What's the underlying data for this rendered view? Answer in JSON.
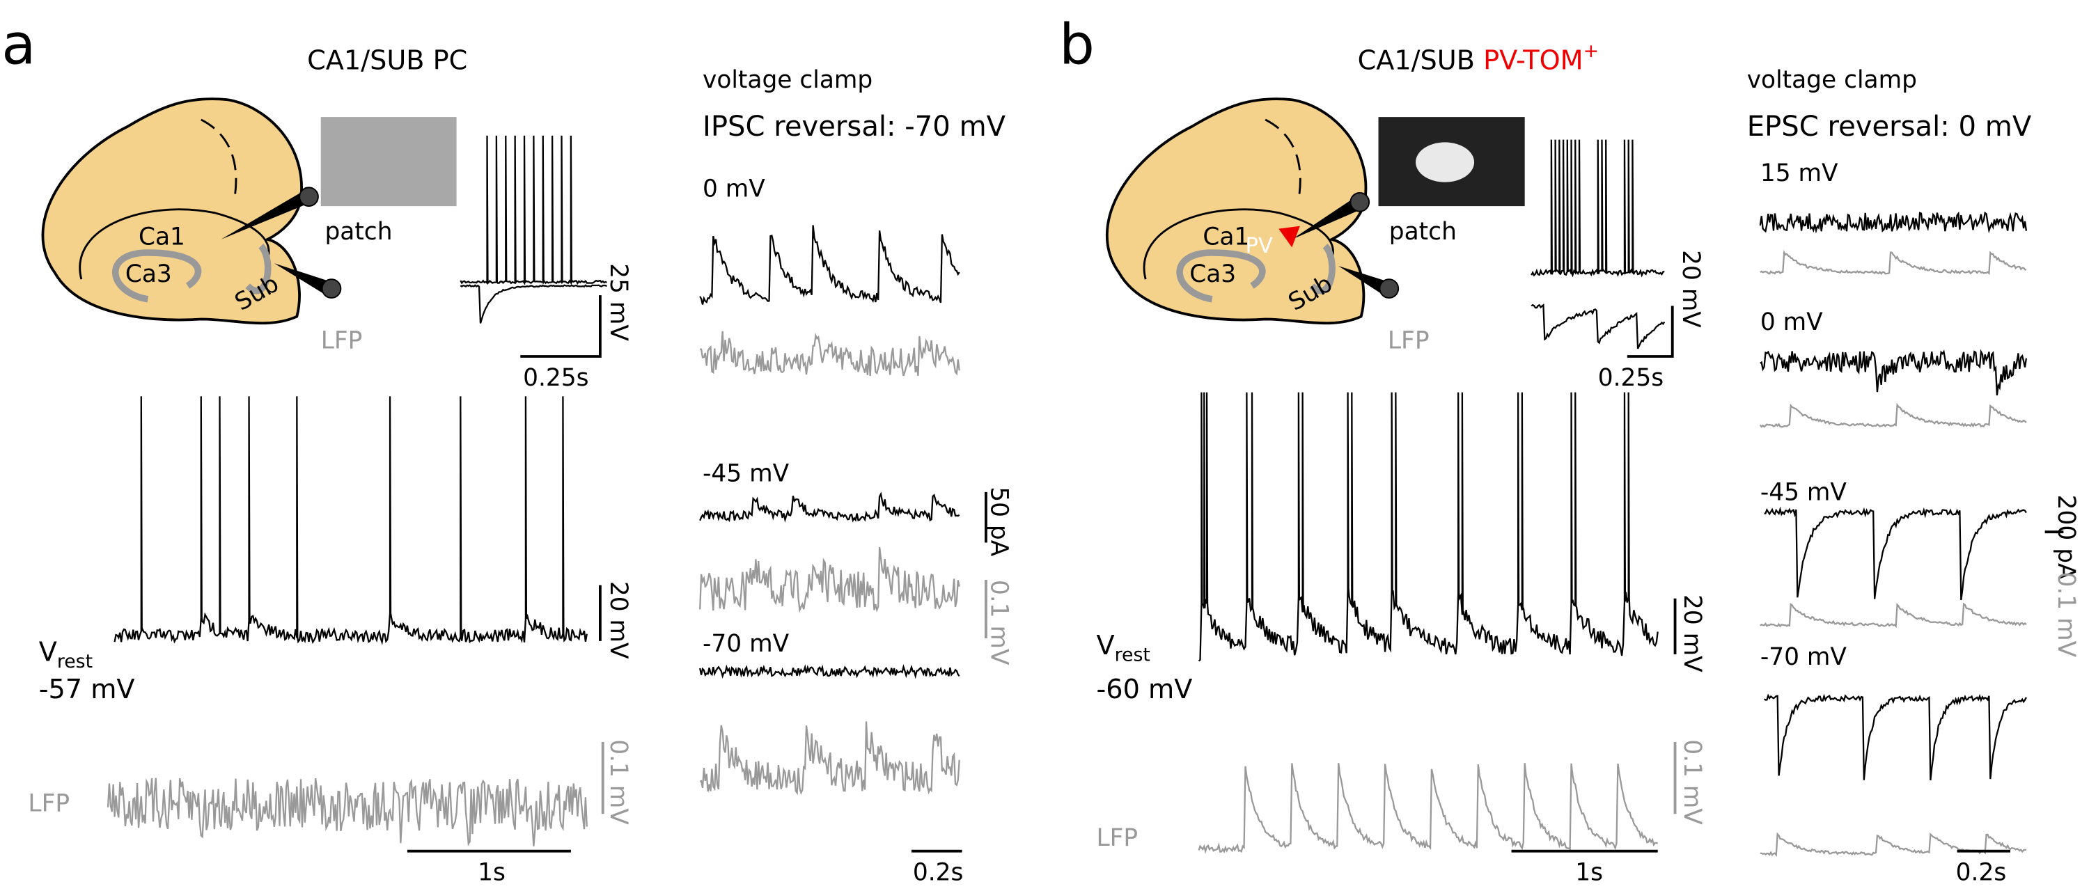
{
  "panels": [
    {
      "label": "a",
      "title": "CA1/SUB PC",
      "slice": {
        "ca1": "Ca1",
        "ca3": "Ca3",
        "sub": "Sub",
        "patch": "patch",
        "lfp": "LFP"
      },
      "step_scale": {
        "voltage": "25 mV",
        "time": "0.25s"
      },
      "clamp": {
        "heading": "voltage clamp",
        "subtitle": "IPSC reversal: -70 mV",
        "holds": [
          "0 mV",
          "-45 mV",
          "-70 mV"
        ],
        "current_scale": "50 pA",
        "lfp_scale": "0.1 mV",
        "time_scale": "0.2s"
      },
      "recording": {
        "v": "V",
        "sub": "rest",
        "resting": "-57 mV",
        "voltage_scale": "20 mV",
        "lfp": "LFP",
        "lfp_scale": "0.1 mV",
        "time_scale": "1s"
      }
    },
    {
      "label": "b",
      "title_parts": [
        "CA1/SUB",
        "PV-TOM",
        "+"
      ],
      "slice": {
        "ca1": "Ca1",
        "ca3": "Ca3",
        "sub": "Sub",
        "pv": "PV",
        "patch": "patch",
        "lfp": "LFP"
      },
      "step_scale": {
        "voltage": "20 mV",
        "time": "0.25s"
      },
      "clamp": {
        "heading": "voltage clamp",
        "subtitle": "EPSC reversal: 0 mV",
        "holds": [
          "15 mV",
          "0 mV",
          "-45 mV",
          "-70 mV"
        ],
        "current_scale": "200 pA",
        "lfp_scale": "0.1 mV",
        "time_scale": "0.2s"
      },
      "recording": {
        "v": "V",
        "sub": "rest",
        "resting": "-60 mV",
        "voltage_scale": "20 mV",
        "lfp": "LFP",
        "lfp_scale": "0.1 mV",
        "time_scale": "1s"
      }
    }
  ]
}
